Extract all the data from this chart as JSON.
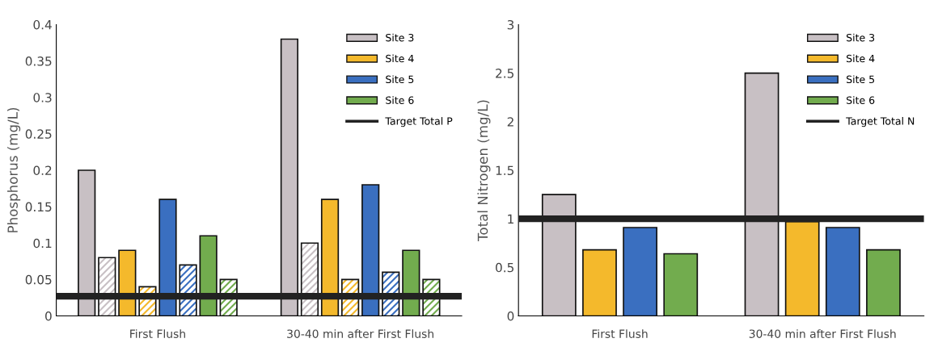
{
  "chart_data": [
    {
      "type": "bar",
      "ylabel": "Phosphorus (mg/L)",
      "categories": [
        "First Flush",
        "30-40 min after First Flush"
      ],
      "ylim": [
        0,
        0.4
      ],
      "yticks": [
        0,
        0.05,
        0.1,
        0.15,
        0.2,
        0.25,
        0.3,
        0.35,
        0.4
      ],
      "legend": "top right",
      "series": [
        {
          "name": "Site 3",
          "color": "#c8c0c4",
          "values": [
            0.2,
            0.38
          ]
        },
        {
          "color": "#c8c0c4",
          "values": [
            0.08,
            0.1
          ]
        },
        {
          "name": "Site 4",
          "color": "#f4b92c",
          "values": [
            0.09,
            0.16
          ]
        },
        {
          "color": "#f4b92c",
          "values": [
            0.04,
            0.05
          ]
        },
        {
          "name": "Site 5",
          "color": "#3a6fc0",
          "values": [
            0.16,
            0.18
          ]
        },
        {
          "color": "#3a6fc0",
          "values": [
            0.07,
            0.06
          ]
        },
        {
          "name": "Site 6",
          "color": "#72ac4e",
          "values": [
            0.11,
            0.09
          ]
        },
        {
          "color": "#72ac4e",
          "values": [
            0.05,
            0.05
          ]
        }
      ],
      "ref_lines": [
        {
          "axis": "y",
          "value": 0.027,
          "label": "Target Total P",
          "color": "#222222"
        }
      ]
    },
    {
      "type": "bar",
      "ylabel": "Total Nitrogen (mg/L)",
      "categories": [
        "First Flush",
        "30-40 min after First Flush"
      ],
      "ylim": [
        0,
        3
      ],
      "yticks": [
        0,
        0.5,
        1,
        1.5,
        2,
        2.5,
        3
      ],
      "legend": "top right",
      "series": [
        {
          "name": "Site 3",
          "color": "#c8c0c4",
          "values": [
            1.25,
            2.5
          ]
        },
        {
          "name": "Site 4",
          "color": "#f4b92c",
          "values": [
            0.68,
            0.97
          ]
        },
        {
          "name": "Site 5",
          "color": "#3a6fc0",
          "values": [
            0.91,
            0.91
          ]
        },
        {
          "name": "Site 6",
          "color": "#72ac4e",
          "values": [
            0.64,
            0.68
          ]
        }
      ],
      "ref_lines": [
        {
          "axis": "y",
          "value": 1,
          "label": "Target Total N",
          "color": "#222222"
        }
      ]
    }
  ]
}
